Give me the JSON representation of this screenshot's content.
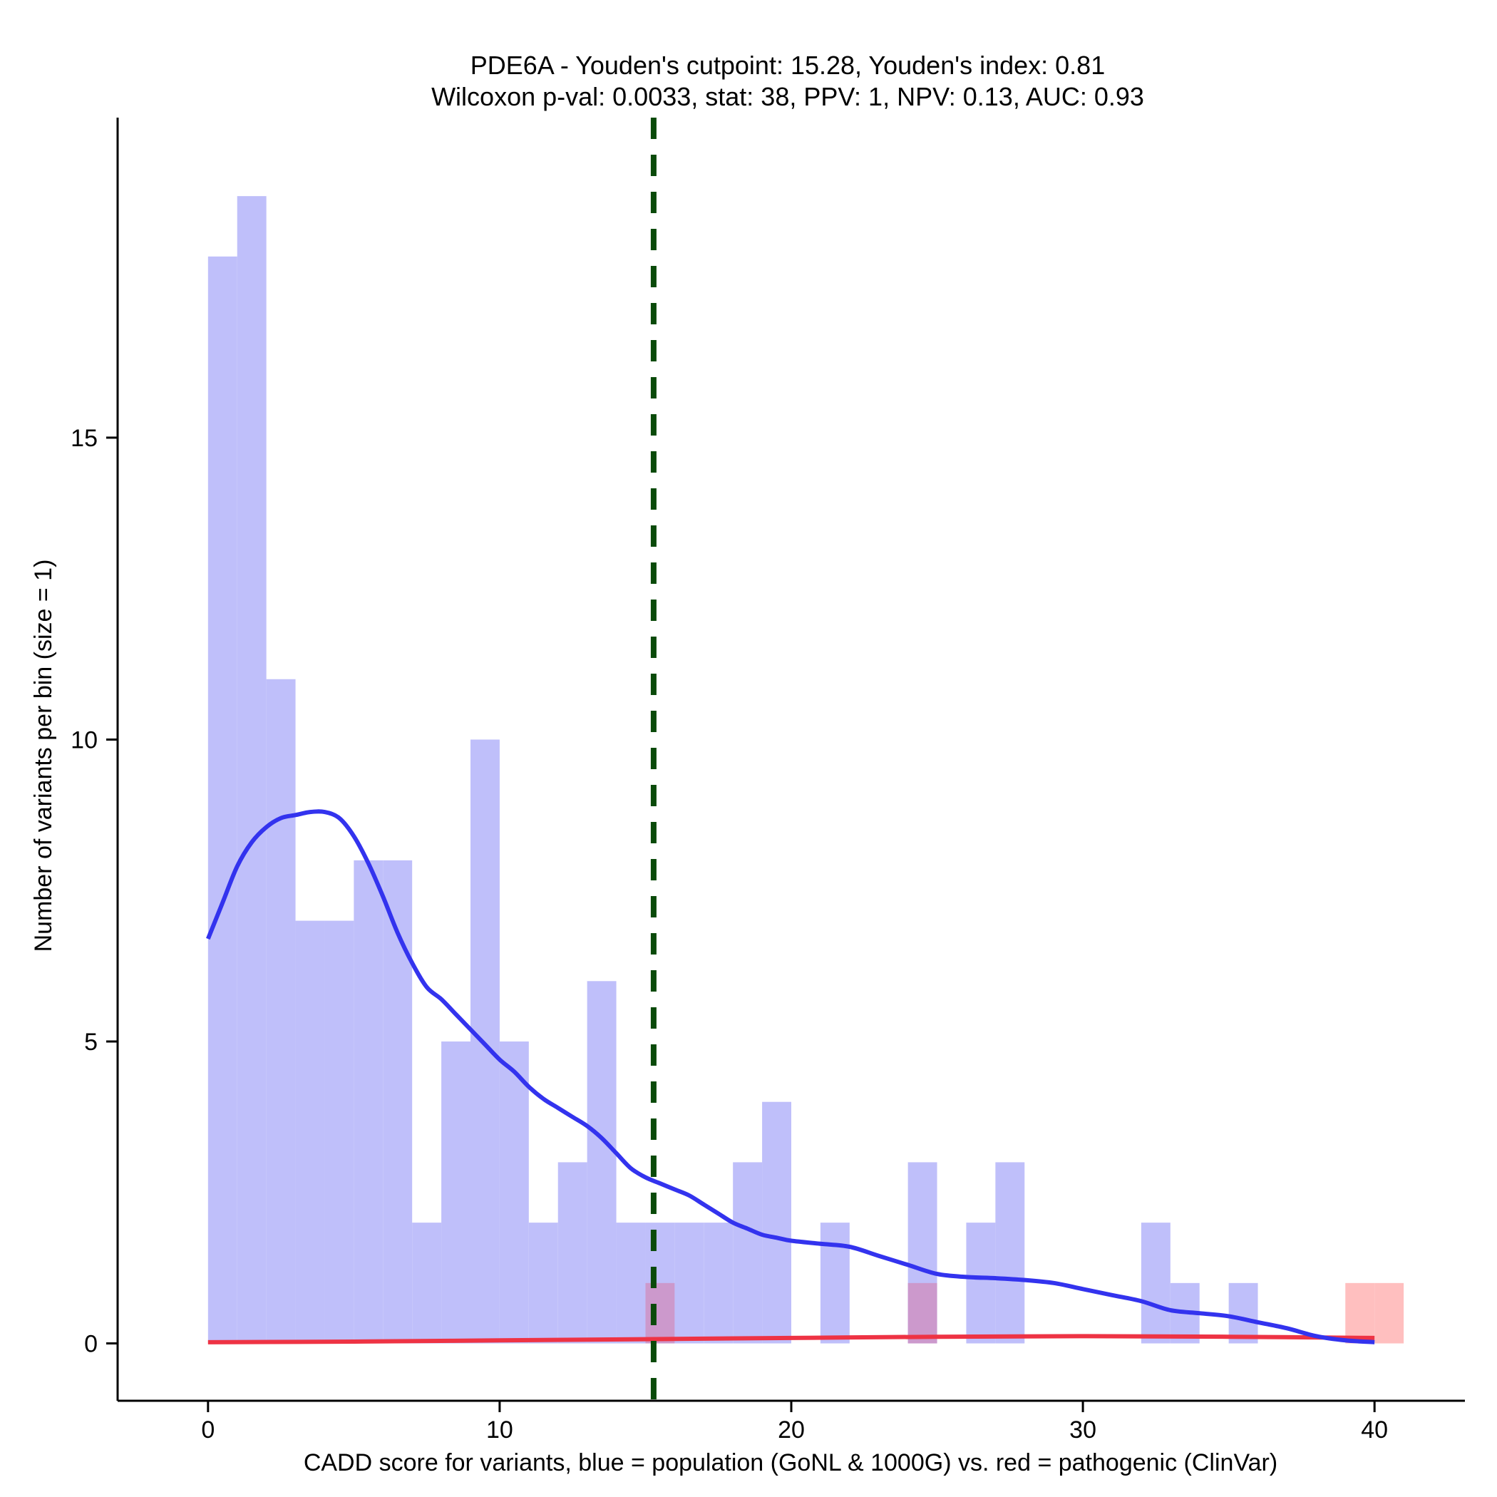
{
  "chart_data": {
    "type": "bar",
    "title_line1": "PDE6A - Youden's cutpoint: 15.28, Youden's index: 0.81",
    "title_line2": "Wilcoxon p-val: 0.0033, stat: 38, PPV: 1, NPV: 0.13, AUC: 0.93",
    "xlabel": "CADD score for variants, blue = population (GoNL & 1000G) vs. red = pathogenic (ClinVar)",
    "ylabel": "Number of variants per bin (size = 1)",
    "xlim": [
      -3.1,
      43.1
    ],
    "ylim": [
      -0.95,
      20.3
    ],
    "x_ticks": [
      0,
      10,
      20,
      30,
      40
    ],
    "y_ticks": [
      0,
      5,
      10,
      15
    ],
    "bin_size": 1,
    "cutpoint": 15.28,
    "colors": {
      "population": "#bfbffa",
      "pathogenic": "#ffbfbf",
      "overlap": "#cc99cc",
      "population_density": "#3333ee",
      "pathogenic_density": "#ee3344",
      "cutpoint": "#0a4a0a"
    },
    "population_bins": [
      {
        "x": 0,
        "count": 18
      },
      {
        "x": 1,
        "count": 19
      },
      {
        "x": 2,
        "count": 11
      },
      {
        "x": 3,
        "count": 7
      },
      {
        "x": 4,
        "count": 7
      },
      {
        "x": 5,
        "count": 8
      },
      {
        "x": 6,
        "count": 8
      },
      {
        "x": 7,
        "count": 2
      },
      {
        "x": 8,
        "count": 5
      },
      {
        "x": 9,
        "count": 10
      },
      {
        "x": 10,
        "count": 5
      },
      {
        "x": 11,
        "count": 2
      },
      {
        "x": 12,
        "count": 3
      },
      {
        "x": 13,
        "count": 6
      },
      {
        "x": 14,
        "count": 2
      },
      {
        "x": 15,
        "count": 2
      },
      {
        "x": 16,
        "count": 2
      },
      {
        "x": 17,
        "count": 2
      },
      {
        "x": 18,
        "count": 3
      },
      {
        "x": 19,
        "count": 4
      },
      {
        "x": 21,
        "count": 2
      },
      {
        "x": 24,
        "count": 3
      },
      {
        "x": 26,
        "count": 2
      },
      {
        "x": 27,
        "count": 3
      },
      {
        "x": 32,
        "count": 2
      },
      {
        "x": 33,
        "count": 1
      },
      {
        "x": 35,
        "count": 1
      }
    ],
    "pathogenic_bins": [
      {
        "x": 15,
        "count": 1
      },
      {
        "x": 24,
        "count": 1
      },
      {
        "x": 39,
        "count": 1
      },
      {
        "x": 40,
        "count": 1
      }
    ],
    "population_density": {
      "x": [
        0,
        0.5,
        1,
        1.5,
        2,
        2.5,
        3,
        3.5,
        4,
        4.5,
        5,
        5.5,
        6,
        6.5,
        7,
        7.5,
        8,
        8.5,
        9,
        9.5,
        10,
        10.5,
        11,
        11.5,
        12,
        12.5,
        13,
        13.5,
        14,
        14.5,
        15,
        15.5,
        16,
        16.5,
        17,
        17.5,
        18,
        18.5,
        19,
        19.5,
        20,
        21,
        22,
        23,
        24,
        25,
        26,
        27,
        28,
        29,
        30,
        31,
        32,
        33,
        34,
        35,
        36,
        37,
        38,
        39,
        40
      ],
      "y": [
        6.7,
        7.3,
        7.9,
        8.3,
        8.55,
        8.7,
        8.75,
        8.8,
        8.8,
        8.7,
        8.4,
        7.95,
        7.4,
        6.8,
        6.3,
        5.9,
        5.7,
        5.45,
        5.2,
        4.95,
        4.7,
        4.5,
        4.25,
        4.05,
        3.9,
        3.75,
        3.6,
        3.4,
        3.15,
        2.9,
        2.75,
        2.65,
        2.55,
        2.45,
        2.3,
        2.15,
        2.0,
        1.9,
        1.8,
        1.75,
        1.7,
        1.65,
        1.6,
        1.45,
        1.3,
        1.15,
        1.1,
        1.08,
        1.05,
        1.0,
        0.9,
        0.8,
        0.7,
        0.55,
        0.5,
        0.45,
        0.35,
        0.25,
        0.12,
        0.05,
        0.02
      ]
    },
    "pathogenic_density": {
      "x": [
        0,
        5,
        10,
        15,
        20,
        25,
        30,
        35,
        40
      ],
      "y": [
        0.02,
        0.03,
        0.05,
        0.07,
        0.09,
        0.11,
        0.12,
        0.11,
        0.09
      ]
    }
  }
}
